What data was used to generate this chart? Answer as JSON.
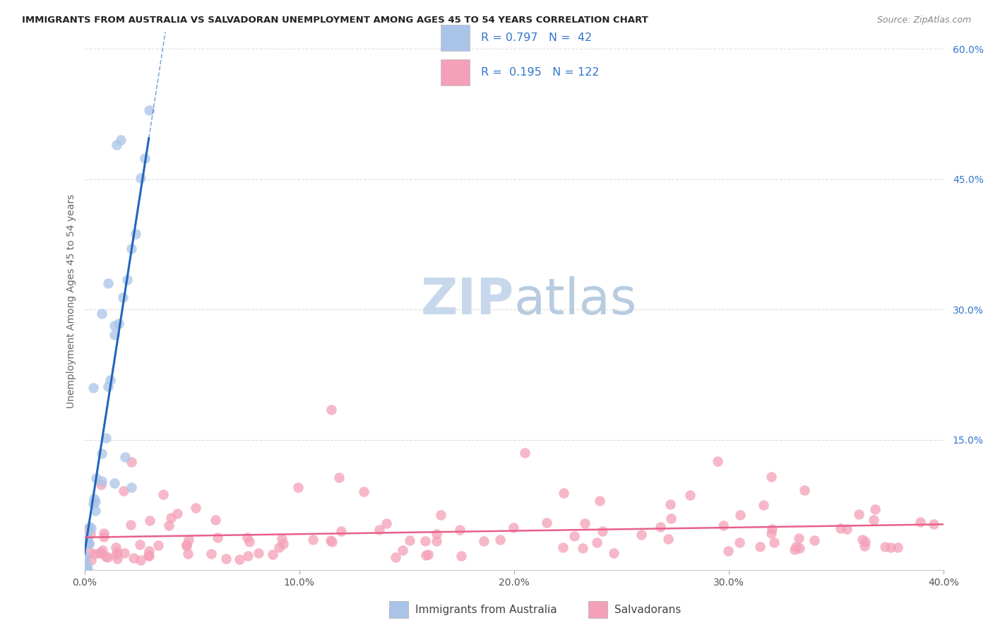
{
  "title": "IMMIGRANTS FROM AUSTRALIA VS SALVADORAN UNEMPLOYMENT AMONG AGES 45 TO 54 YEARS CORRELATION CHART",
  "source": "Source: ZipAtlas.com",
  "ylabel": "Unemployment Among Ages 45 to 54 years",
  "xmin": 0.0,
  "xmax": 0.4,
  "ymin": 0.0,
  "ymax": 0.62,
  "blue_color": "#aac4e8",
  "blue_line_color": "#2266bb",
  "blue_text_color": "#3377cc",
  "pink_color": "#f4a0b8",
  "pink_line_color": "#e8608a",
  "pink_text_color": "#e8608a",
  "watermark_zip": "ZIP",
  "watermark_atlas": "atlas",
  "legend_text_color": "#3377cc",
  "legend_label_color": "#444444"
}
